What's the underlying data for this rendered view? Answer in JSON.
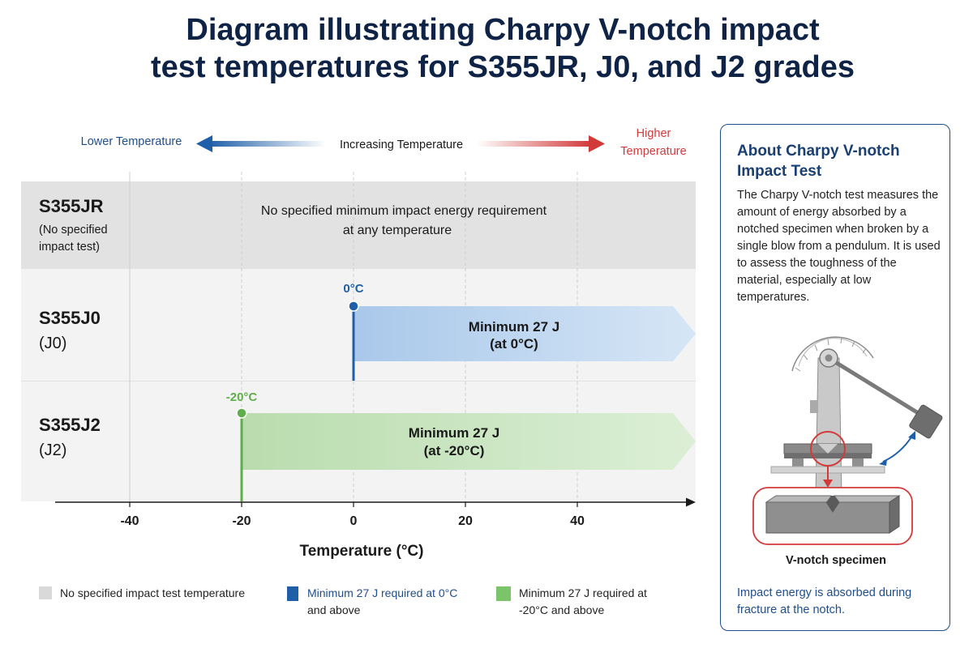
{
  "title": {
    "line1": "Diagram illustrating Charpy V-notch impact",
    "line2": "test temperatures for S355JR, J0, and J2 grades"
  },
  "direction": {
    "lower": "Lower Temperature",
    "increasing": "Increasing Temperature",
    "higher_line1": "Higher",
    "higher_line2": "Temperature"
  },
  "rows": {
    "jr": {
      "name": "S355JR",
      "sub1": "(No specified",
      "sub2": "impact test)",
      "message1": "No specified minimum impact energy requirement",
      "message2": "at any temperature"
    },
    "j0": {
      "name": "S355J0",
      "sub": "(J0)",
      "temp_label": "0°C",
      "temp_c": 0,
      "req1": "Minimum 27 J",
      "req2": "(at 0°C)"
    },
    "j2": {
      "name": "S355J2",
      "sub": "(J2)",
      "temp_label": "-20°C",
      "temp_c": -20,
      "req1": "Minimum  27 J",
      "req2": "(at -20°C)"
    }
  },
  "axis": {
    "label": "Temperature (°C)",
    "ticks": [
      -40,
      -20,
      0,
      20,
      40
    ],
    "range": [
      -53,
      57
    ]
  },
  "legend": {
    "none": "No specified impact test temperature",
    "j0_line1": "Minimum 27 J required at 0°C",
    "j0_line2": "and above",
    "j2_line1": "Minimum  27 J  required  at",
    "j2_line2": "-20°C and above"
  },
  "colors": {
    "navy": "#0f2347",
    "blue": "#1f5fa8",
    "green": "#5fae4c",
    "red": "#d23a3a",
    "grey_band": "#e2e2e2",
    "light_band": "#f1f1f1"
  },
  "info": {
    "title": "About Charpy V-notch Impact Test",
    "body": "The Charpy V-notch test measures the amount of energy absorbed by a notched specimen when broken by a single blow from a pendulum. It is used to assess the toughness of the material, especially at low temperatures.",
    "specimen_label": "V-notch specimen",
    "footer": "Impact energy is absorbed during fracture at the notch.",
    "icons": [
      "pendulum-icon",
      "specimen-icon"
    ]
  }
}
